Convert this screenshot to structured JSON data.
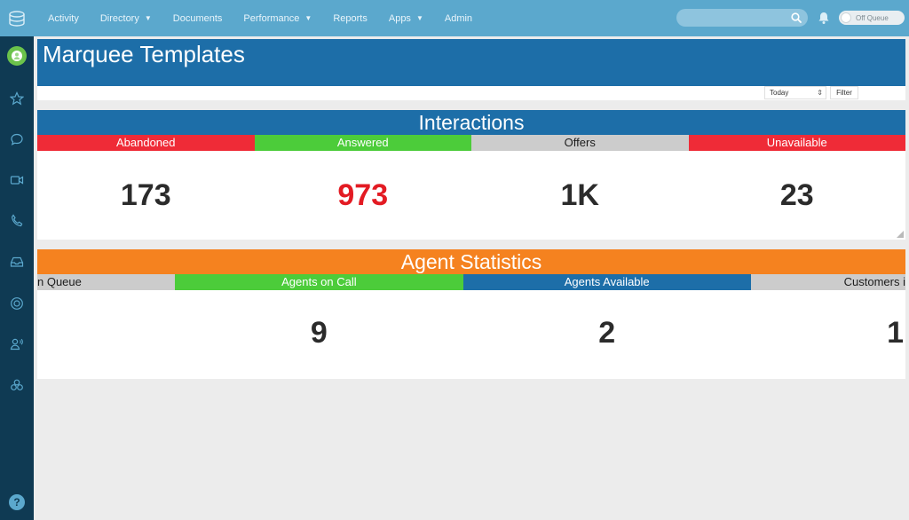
{
  "nav": {
    "items": [
      {
        "label": "Activity",
        "caret": false
      },
      {
        "label": "Directory",
        "caret": true
      },
      {
        "label": "Documents",
        "caret": false
      },
      {
        "label": "Performance",
        "caret": true
      },
      {
        "label": "Reports",
        "caret": false
      },
      {
        "label": "Apps",
        "caret": true
      },
      {
        "label": "Admin",
        "caret": false
      }
    ],
    "search_placeholder": "",
    "queue_toggle": "Off Queue"
  },
  "page": {
    "title": "Marquee Templates",
    "date_range": "Today",
    "filter_label": "Filter"
  },
  "interactions": {
    "title": "Interactions",
    "columns": [
      {
        "label": "Abandoned",
        "value": "173",
        "bg": "#ef2b37",
        "fg": "#ffffff",
        "value_color": "#2b2b2b"
      },
      {
        "label": "Answered",
        "value": "973",
        "bg": "#4ccc3a",
        "fg": "#ffffff",
        "value_color": "#e31b23"
      },
      {
        "label": "Offers",
        "value": "1K",
        "bg": "#cccccc",
        "fg": "#1c1c1c",
        "value_color": "#2b2b2b"
      },
      {
        "label": "Unavailable",
        "value": "23",
        "bg": "#ef2b37",
        "fg": "#ffffff",
        "value_color": "#2b2b2b"
      }
    ]
  },
  "agent_statistics": {
    "title": "Agent Statistics",
    "columns": [
      {
        "label": "n Queue",
        "value": "",
        "bg": "#cccccc",
        "fg": "#1c1c1c"
      },
      {
        "label": "Agents on Call",
        "value": "9",
        "bg": "#4ccc3a",
        "fg": "#ffffff"
      },
      {
        "label": "Agents Available",
        "value": "2",
        "bg": "#1d6ea8",
        "fg": "#ffffff"
      },
      {
        "label": "Customers i",
        "value": "1",
        "bg": "#cccccc",
        "fg": "#1c1c1c"
      }
    ]
  },
  "colors": {
    "topbar": "#5ba8cd",
    "sidebar": "#0f3a53",
    "header_blue": "#1d6ea8",
    "header_orange": "#f5821f"
  }
}
